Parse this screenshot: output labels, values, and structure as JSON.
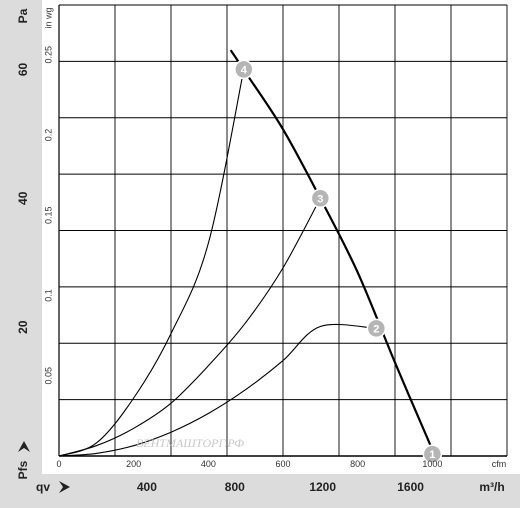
{
  "chart_data": {
    "type": "line",
    "x_primary": {
      "unit": "cfm",
      "ticks": [
        "0",
        "200",
        "400",
        "600",
        "800",
        "1000"
      ],
      "range": [
        0,
        1200
      ]
    },
    "x_secondary": {
      "label": "qv",
      "unit": "m³/h",
      "ticks": [
        "400",
        "800",
        "1200",
        "1600"
      ]
    },
    "y_primary": {
      "label": "Pfs",
      "unit": "Pa",
      "ticks": [
        "20",
        "40",
        "60"
      ],
      "range": [
        0,
        70
      ]
    },
    "y_secondary": {
      "unit": "in wg",
      "ticks": [
        "0.05",
        "0.1",
        "0.15",
        "0.2",
        "0.25"
      ]
    },
    "grid": true,
    "fan_curve": {
      "x": [
        460,
        500,
        600,
        700,
        800,
        900,
        1000
      ],
      "y": [
        63,
        59.5,
        50.7,
        40.0,
        28.5,
        14.5,
        1.0
      ]
    },
    "system_curves": [
      {
        "marker": "1",
        "x": [
          1000
        ],
        "y": [
          0.3
        ]
      },
      {
        "marker": "2",
        "x": [
          0,
          100,
          200,
          300,
          400,
          500,
          600,
          700,
          850
        ],
        "y": [
          0,
          0.4,
          1.6,
          3.7,
          6.6,
          10.3,
          14.8,
          20.1,
          19.8
        ]
      },
      {
        "marker": "3",
        "x": [
          0,
          100,
          200,
          300,
          400,
          500,
          600,
          700
        ],
        "y": [
          0,
          1.6,
          4.3,
          8.2,
          14.0,
          20.7,
          29.2,
          40.0
        ]
      },
      {
        "marker": "4",
        "x": [
          0,
          100,
          200,
          300,
          400,
          495
        ],
        "y": [
          0,
          2.0,
          9.0,
          19.0,
          33.0,
          60.0
        ]
      }
    ],
    "markers": [
      {
        "label": "1",
        "x": 1000,
        "y": 0.3
      },
      {
        "label": "2",
        "x": 850,
        "y": 19.8
      },
      {
        "label": "3",
        "x": 700,
        "y": 40.0
      },
      {
        "label": "4",
        "x": 495,
        "y": 60.0
      }
    ],
    "watermark": "ВЕНТМАШТОРГ.РФ",
    "colors": {
      "panel": "#dcdcdc",
      "grid": "#000000",
      "curve": "#000000",
      "marker": "#b5b5b5"
    }
  }
}
